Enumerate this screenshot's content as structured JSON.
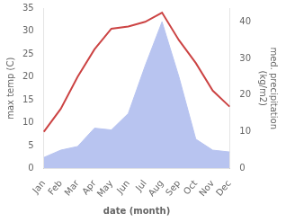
{
  "chart_data": {
    "type": "line",
    "categories": [
      "Jan",
      "Feb",
      "Mar",
      "Apr",
      "May",
      "Jun",
      "Jul",
      "Aug",
      "Sep",
      "Oct",
      "Nov",
      "Dec"
    ],
    "series": [
      {
        "type": "line",
        "color": "#cc4444",
        "values": [
          8,
          13,
          20,
          26,
          30.5,
          31,
          32,
          34,
          28,
          23,
          17,
          13.5
        ]
      },
      {
        "type": "area",
        "color": "#b8c4f0",
        "axis": "y2",
        "values": [
          3,
          5,
          6,
          11,
          10.5,
          15,
          28,
          40,
          25,
          8,
          5,
          4.5
        ]
      }
    ],
    "xlabel": "date (month)",
    "ylabel": "max temp (C)",
    "y2label": "med. precipitation\n(kg/m2)",
    "ylim": [
      0,
      35
    ],
    "yticks": [
      0,
      5,
      10,
      15,
      20,
      25,
      30,
      35
    ],
    "y2lim": [
      0,
      43.75
    ],
    "y2ticks": [
      0,
      10,
      20,
      30,
      40
    ],
    "grid": false
  }
}
